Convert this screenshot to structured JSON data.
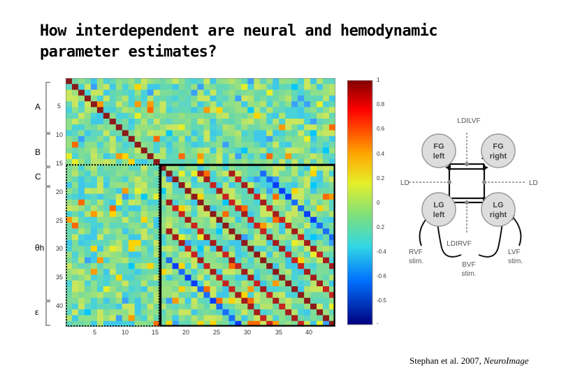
{
  "title": {
    "line1": "How interdependent are neural and hemodynamic",
    "line2": "parameter estimates?"
  },
  "citation": {
    "authors": "Stephan et al. 2007,",
    "journal": "NeuroImage"
  },
  "matrix": {
    "side_labels": {
      "a": "A",
      "b": "B",
      "c": "C",
      "theta": "θh",
      "epsilon": "ε"
    },
    "y_ticks": [
      "5",
      "10",
      "15",
      "20",
      "25",
      "30",
      "35",
      "40"
    ],
    "x_ticks": [
      "5",
      "10",
      "15",
      "20",
      "25",
      "30",
      "35",
      "40"
    ],
    "size": 43,
    "colorbar_ticks": [
      "1",
      "0.8",
      "0.6",
      "0.4",
      "0.2",
      "0",
      "0.2",
      "-0.4",
      "-0.6",
      "-0.5",
      "-"
    ]
  },
  "diagram": {
    "nodes": {
      "fg_left": "FG left",
      "fg_right": "FG right",
      "lg_left": "LG left",
      "lg_right": "LG right"
    },
    "labels": {
      "ldilvf": "LDILVF",
      "ldirvf": "LDIRVF",
      "ld_left": "LD",
      "ld_right": "LD",
      "rvf": "RVF stim.",
      "lvf": "LVF stim.",
      "bvf": "BVF stim."
    }
  }
}
